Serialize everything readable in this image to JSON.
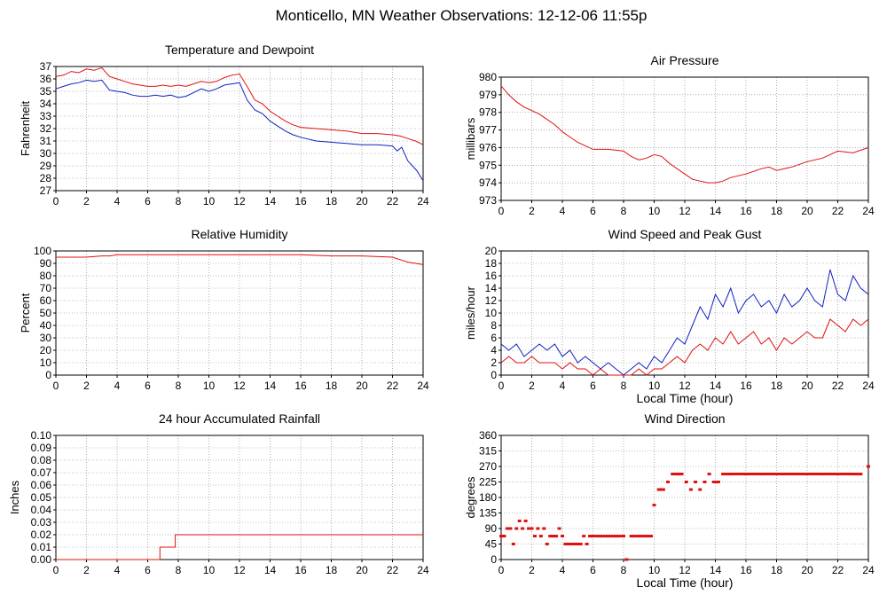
{
  "page_title": "Monticello, MN Weather Observations: 12-12-06 11:55p",
  "colors": {
    "red": "#e01010",
    "blue": "#1020c0",
    "grid": "#808080"
  },
  "chart_data": [
    {
      "id": "temp",
      "type": "line",
      "title": "Temperature and Dewpoint",
      "xlabel": "",
      "ylabel": "Fahrenheit",
      "xlim": [
        0,
        24
      ],
      "ylim": [
        27,
        37
      ],
      "xticks": [
        0,
        2,
        4,
        6,
        8,
        10,
        12,
        14,
        16,
        18,
        20,
        22,
        24
      ],
      "yticks": [
        27,
        28,
        29,
        30,
        31,
        32,
        33,
        34,
        35,
        36,
        37
      ],
      "grid": true,
      "series": [
        {
          "color": "#e01010",
          "x": [
            0,
            0.5,
            1,
            1.5,
            2,
            2.5,
            3,
            3.5,
            4,
            4.5,
            5,
            5.5,
            6,
            6.5,
            7,
            7.5,
            8,
            8.5,
            9,
            9.5,
            10,
            10.5,
            11,
            11.5,
            12,
            12.5,
            13,
            13.5,
            14,
            14.5,
            15,
            15.5,
            16,
            17,
            18,
            19,
            20,
            21,
            22,
            22.5,
            23,
            23.5,
            24
          ],
          "y": [
            36.2,
            36.3,
            36.6,
            36.5,
            36.8,
            36.7,
            36.9,
            36.2,
            36.0,
            35.8,
            35.6,
            35.5,
            35.4,
            35.4,
            35.5,
            35.4,
            35.5,
            35.4,
            35.6,
            35.8,
            35.7,
            35.8,
            36.1,
            36.3,
            36.4,
            35.4,
            34.3,
            34.0,
            33.4,
            33.0,
            32.6,
            32.3,
            32.1,
            32.0,
            31.9,
            31.8,
            31.6,
            31.6,
            31.5,
            31.4,
            31.2,
            31.0,
            30.7
          ]
        },
        {
          "color": "#1020c0",
          "x": [
            0,
            0.5,
            1,
            1.5,
            2,
            2.5,
            3,
            3.5,
            4,
            4.5,
            5,
            5.5,
            6,
            6.5,
            7,
            7.5,
            8,
            8.5,
            9,
            9.5,
            10,
            10.5,
            11,
            11.5,
            12,
            12.5,
            13,
            13.5,
            14,
            14.5,
            15,
            15.5,
            16,
            17,
            18,
            19,
            20,
            21,
            22,
            22.3,
            22.6,
            23,
            23.3,
            23.6,
            24
          ],
          "y": [
            35.2,
            35.4,
            35.6,
            35.7,
            35.9,
            35.8,
            35.9,
            35.1,
            35.0,
            34.9,
            34.7,
            34.6,
            34.6,
            34.7,
            34.6,
            34.7,
            34.5,
            34.6,
            34.9,
            35.2,
            35.0,
            35.2,
            35.5,
            35.6,
            35.7,
            34.3,
            33.5,
            33.2,
            32.6,
            32.2,
            31.8,
            31.5,
            31.3,
            31.0,
            30.9,
            30.8,
            30.7,
            30.7,
            30.6,
            30.2,
            30.5,
            29.4,
            29.0,
            28.6,
            27.8
          ]
        }
      ]
    },
    {
      "id": "pressure",
      "type": "line",
      "title": "Air Pressure",
      "xlabel": "",
      "ylabel": "millibars",
      "xlim": [
        0,
        24
      ],
      "ylim": [
        973,
        980
      ],
      "xticks": [
        0,
        2,
        4,
        6,
        8,
        10,
        12,
        14,
        16,
        18,
        20,
        22,
        24
      ],
      "yticks": [
        973,
        974,
        975,
        976,
        977,
        978,
        979,
        980
      ],
      "grid": true,
      "series": [
        {
          "color": "#e01010",
          "x": [
            0,
            0.5,
            1,
            1.5,
            2,
            2.5,
            3,
            3.5,
            4,
            4.5,
            5,
            5.5,
            6,
            7,
            8,
            8.5,
            9,
            9.5,
            10,
            10.5,
            11,
            11.5,
            12,
            12.5,
            13,
            13.5,
            14,
            14.5,
            15,
            15.5,
            16,
            17,
            17.5,
            18,
            18.5,
            19,
            20,
            21,
            22,
            23,
            24
          ],
          "y": [
            979.5,
            979.0,
            978.6,
            978.3,
            978.1,
            977.9,
            977.6,
            977.3,
            976.9,
            976.6,
            976.3,
            976.1,
            975.9,
            975.9,
            975.8,
            975.5,
            975.3,
            975.4,
            975.6,
            975.5,
            975.1,
            974.8,
            974.5,
            974.2,
            974.1,
            974.0,
            974.0,
            974.1,
            974.3,
            974.4,
            974.5,
            974.8,
            974.9,
            974.7,
            974.8,
            974.9,
            975.2,
            975.4,
            975.8,
            975.7,
            976.0
          ]
        }
      ]
    },
    {
      "id": "humidity",
      "type": "line",
      "title": "Relative Humidity",
      "xlabel": "",
      "ylabel": "Percent",
      "xlim": [
        0,
        24
      ],
      "ylim": [
        0,
        100
      ],
      "xticks": [
        0,
        2,
        4,
        6,
        8,
        10,
        12,
        14,
        16,
        18,
        20,
        22,
        24
      ],
      "yticks": [
        0,
        10,
        20,
        30,
        40,
        50,
        60,
        70,
        80,
        90,
        100
      ],
      "grid": true,
      "series": [
        {
          "color": "#e01010",
          "x": [
            0,
            1,
            2,
            3,
            3.5,
            4,
            6,
            8,
            10,
            12,
            14,
            16,
            18,
            20,
            22,
            22.5,
            23,
            23.5,
            24
          ],
          "y": [
            95,
            95,
            95,
            96,
            96,
            97,
            97,
            97,
            97,
            97,
            97,
            97,
            96,
            96,
            95,
            93,
            91,
            90,
            89
          ]
        }
      ]
    },
    {
      "id": "wind",
      "type": "line",
      "title": "Wind Speed and Peak Gust",
      "xlabel": "Local Time (hour)",
      "ylabel": "miles/hour",
      "xlim": [
        0,
        24
      ],
      "ylim": [
        0,
        20
      ],
      "xticks": [
        0,
        2,
        4,
        6,
        8,
        10,
        12,
        14,
        16,
        18,
        20,
        22,
        24
      ],
      "yticks": [
        0,
        2,
        4,
        6,
        8,
        10,
        12,
        14,
        16,
        18,
        20
      ],
      "grid": true,
      "series": [
        {
          "color": "#1020c0",
          "x": [
            0,
            0.5,
            1,
            1.5,
            2,
            2.5,
            3,
            3.5,
            4,
            4.5,
            5,
            5.5,
            6,
            6.5,
            7,
            7.5,
            8,
            8.5,
            9,
            9.5,
            10,
            10.5,
            11,
            11.5,
            12,
            12.5,
            13,
            13.5,
            14,
            14.5,
            15,
            15.5,
            16,
            16.5,
            17,
            17.5,
            18,
            18.5,
            19,
            19.5,
            20,
            20.5,
            21,
            21.5,
            22,
            22.5,
            23,
            23.5,
            24
          ],
          "y": [
            5,
            4,
            5,
            3,
            4,
            5,
            4,
            5,
            3,
            4,
            2,
            3,
            2,
            1,
            2,
            1,
            0,
            1,
            2,
            1,
            3,
            2,
            4,
            6,
            5,
            8,
            11,
            9,
            13,
            11,
            14,
            10,
            12,
            13,
            11,
            12,
            10,
            13,
            11,
            12,
            14,
            12,
            11,
            17,
            13,
            12,
            16,
            14,
            13
          ]
        },
        {
          "color": "#e01010",
          "x": [
            0,
            0.5,
            1,
            1.5,
            2,
            2.5,
            3,
            3.5,
            4,
            4.5,
            5,
            5.5,
            6,
            6.5,
            7,
            7.5,
            8,
            8.5,
            9,
            9.5,
            10,
            10.5,
            11,
            11.5,
            12,
            12.5,
            13,
            13.5,
            14,
            14.5,
            15,
            15.5,
            16,
            16.5,
            17,
            17.5,
            18,
            18.5,
            19,
            19.5,
            20,
            20.5,
            21,
            21.5,
            22,
            22.5,
            23,
            23.5,
            24
          ],
          "y": [
            2,
            3,
            2,
            2,
            3,
            2,
            2,
            2,
            1,
            2,
            1,
            1,
            0,
            1,
            0,
            0,
            0,
            0,
            1,
            0,
            1,
            1,
            2,
            3,
            2,
            4,
            5,
            4,
            6,
            5,
            7,
            5,
            6,
            7,
            5,
            6,
            4,
            6,
            5,
            6,
            7,
            6,
            6,
            9,
            8,
            7,
            9,
            8,
            9
          ]
        }
      ]
    },
    {
      "id": "rain",
      "type": "line",
      "title": "24 hour Accumulated Rainfall",
      "xlabel": "",
      "ylabel": "Inches",
      "xlim": [
        0,
        24
      ],
      "ylim": [
        0,
        0.1
      ],
      "xticks": [
        0,
        2,
        4,
        6,
        8,
        10,
        12,
        14,
        16,
        18,
        20,
        22,
        24
      ],
      "yticks": [
        "0.00",
        "0.01",
        "0.02",
        "0.03",
        "0.04",
        "0.05",
        "0.06",
        "0.07",
        "0.08",
        "0.09",
        "0.10"
      ],
      "grid": true,
      "series": [
        {
          "color": "#e01010",
          "step": true,
          "x": [
            0,
            6.8,
            6.8,
            7.8,
            7.8,
            24
          ],
          "y": [
            0,
            0,
            0.01,
            0.01,
            0.02,
            0.02
          ]
        }
      ]
    },
    {
      "id": "direction",
      "type": "scatter",
      "title": "Wind Direction",
      "xlabel": "Local Time (hour)",
      "ylabel": "degrees",
      "xlim": [
        0,
        24
      ],
      "ylim": [
        0,
        360
      ],
      "xticks": [
        0,
        2,
        4,
        6,
        8,
        10,
        12,
        14,
        16,
        18,
        20,
        22,
        24
      ],
      "yticks": [
        0,
        45,
        90,
        135,
        180,
        225,
        270,
        315,
        360
      ],
      "grid": true,
      "series": [
        {
          "color": "#e01010",
          "x": [
            0,
            0.2,
            0.4,
            0.6,
            0.8,
            1.0,
            1.2,
            1.4,
            1.6,
            1.8,
            2.0,
            2.2,
            2.4,
            2.6,
            2.8,
            3.0,
            3.2,
            3.4,
            3.6,
            3.8,
            4.0,
            4.2,
            4.4,
            4.6,
            4.8,
            5.0,
            5.2,
            5.4,
            5.6,
            5.8,
            6.0,
            6.5,
            7.0,
            7.5,
            8.0,
            8.2,
            8.5,
            9.0,
            9.5,
            9.8,
            10.0,
            10.3,
            10.6,
            10.9,
            11.2,
            11.5,
            11.8,
            12.1,
            12.4,
            12.7,
            13.0,
            13.3,
            13.6,
            13.9,
            14.2,
            14.5,
            15,
            16,
            17,
            18,
            19,
            20,
            21,
            22,
            23,
            23.5,
            24
          ],
          "y": [
            68,
            68,
            90,
            90,
            45,
            90,
            112,
            90,
            112,
            90,
            90,
            68,
            90,
            68,
            90,
            45,
            68,
            68,
            68,
            90,
            68,
            45,
            45,
            45,
            45,
            45,
            45,
            68,
            45,
            68,
            68,
            68,
            68,
            68,
            68,
            0,
            68,
            68,
            68,
            68,
            158,
            203,
            203,
            225,
            248,
            248,
            248,
            225,
            203,
            225,
            203,
            225,
            248,
            225,
            225,
            248,
            248,
            248,
            248,
            248,
            248,
            248,
            248,
            248,
            248,
            248,
            270
          ]
        }
      ]
    }
  ]
}
